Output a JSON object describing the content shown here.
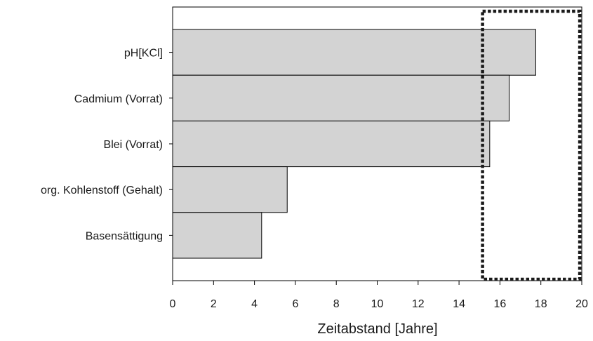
{
  "chart_data": {
    "type": "bar",
    "orientation": "horizontal",
    "categories": [
      "pH[KCl]",
      "Cadmium (Vorrat)",
      "Blei (Vorrat)",
      "org. Kohlenstoff (Gehalt)",
      "Basensättigung"
    ],
    "values": [
      17.75,
      16.45,
      15.5,
      5.6,
      4.35
    ],
    "xlabel": "Zeitabstand [Jahre]",
    "ylabel": "",
    "xlim": [
      0,
      20
    ],
    "xticks": [
      "0",
      "2",
      "4",
      "6",
      "8",
      "10",
      "12",
      "14",
      "16",
      "18",
      "20"
    ],
    "highlight_range": [
      15.15,
      19.9
    ],
    "highlight_style": "dotted-rectangle",
    "grid": false,
    "legend": "none",
    "colors": {
      "bar_fill": "#d3d3d3",
      "bar_stroke": "#000000",
      "highlight": "#1a1a1a"
    }
  }
}
